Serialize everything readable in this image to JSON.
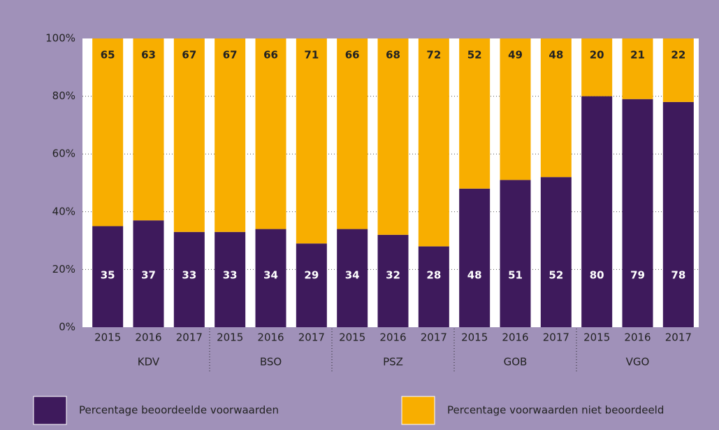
{
  "chart_data": {
    "type": "stacked_bar",
    "categories": [
      "2015",
      "2016",
      "2017",
      "2015",
      "2016",
      "2017",
      "2015",
      "2016",
      "2017",
      "2015",
      "2016",
      "2017",
      "2015",
      "2016",
      "2017"
    ],
    "groups": [
      "KDV",
      "BSO",
      "PSZ",
      "GOB",
      "VGO"
    ],
    "series": [
      {
        "name": "Percentage beoordeelde voorwaarden",
        "color": "#3e1a5c",
        "values": [
          35,
          37,
          33,
          33,
          34,
          29,
          34,
          32,
          28,
          48,
          51,
          52,
          80,
          79,
          78
        ]
      },
      {
        "name": "Percentage voorwaarden niet beoordeeld",
        "color": "#f8ae00",
        "values": [
          65,
          63,
          67,
          67,
          66,
          71,
          66,
          68,
          72,
          52,
          49,
          48,
          20,
          21,
          22
        ]
      }
    ],
    "ylim": [
      0,
      100
    ],
    "yticks": [
      {
        "value": 0,
        "label": "0%"
      },
      {
        "value": 20,
        "label": "20%"
      },
      {
        "value": 40,
        "label": "40%"
      },
      {
        "value": 60,
        "label": "60%"
      },
      {
        "value": 80,
        "label": "80%"
      },
      {
        "value": 100,
        "label": "100%"
      }
    ],
    "grid": true
  }
}
